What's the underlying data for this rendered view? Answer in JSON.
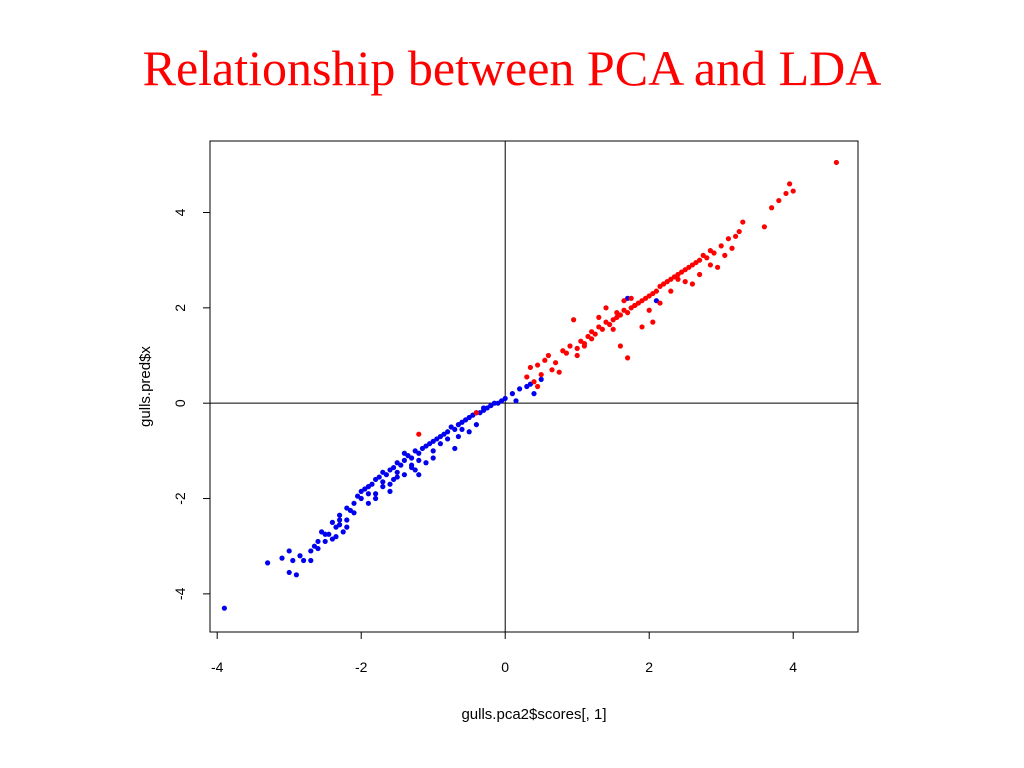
{
  "slide": {
    "title": "Relationship between PCA and LDA"
  },
  "colors": {
    "title": "#ff0000",
    "series_red": "#ff0000",
    "series_blue": "#0000ee",
    "axes": "#000000"
  },
  "chart_data": {
    "type": "scatter",
    "title": "",
    "xlabel": "gulls.pca2$scores[, 1]",
    "ylabel": "gulls.pred$x",
    "xlim": [
      -4.1,
      4.9
    ],
    "ylim": [
      -4.8,
      5.5
    ],
    "xticks": [
      -4,
      -2,
      0,
      2,
      4
    ],
    "yticks": [
      -4,
      -2,
      0,
      2,
      4
    ],
    "xtick_labels": [
      "-4",
      "-2",
      "0",
      "2",
      "4"
    ],
    "ytick_labels": [
      "-4",
      "-2",
      "0",
      "2",
      "4"
    ],
    "reference_lines": {
      "x": 0,
      "y": 0
    },
    "grid": false,
    "legend": false,
    "series": [
      {
        "color": "#0000ee",
        "x": [
          -3.9,
          -3.3,
          -3.1,
          -3.0,
          -2.95,
          -2.9,
          -2.85,
          -2.8,
          -2.7,
          -2.65,
          -2.6,
          -2.55,
          -2.5,
          -2.45,
          -2.4,
          -2.4,
          -2.35,
          -2.3,
          -2.3,
          -2.25,
          -2.2,
          -2.2,
          -2.15,
          -2.1,
          -2.05,
          -2.0,
          -1.95,
          -1.9,
          -1.9,
          -1.85,
          -1.8,
          -1.8,
          -1.75,
          -1.7,
          -1.7,
          -1.65,
          -1.6,
          -1.6,
          -1.55,
          -1.5,
          -1.5,
          -1.45,
          -1.4,
          -1.4,
          -1.35,
          -1.3,
          -1.3,
          -1.25,
          -1.2,
          -1.2,
          -1.15,
          -1.1,
          -1.05,
          -1.0,
          -0.95,
          -0.9,
          -0.85,
          -0.8,
          -0.75,
          -0.7,
          -0.65,
          -0.6,
          -0.55,
          -0.5,
          -0.45,
          -0.4,
          -0.35,
          -0.3,
          -0.25,
          -0.2,
          -0.15,
          -0.1,
          -0.05,
          0.0,
          0.1,
          0.2,
          0.3,
          0.4,
          0.5,
          1.7,
          2.1,
          -2.3,
          -2.0,
          -1.6,
          -1.3,
          -1.0,
          -0.7,
          -0.5,
          -2.5,
          -2.2,
          -1.8,
          -1.5,
          -1.1,
          -0.8,
          -0.3,
          -2.7,
          -1.9,
          -1.4,
          -0.6,
          0.15,
          0.35,
          -3.0,
          -2.6,
          -1.7,
          -1.2,
          -0.9,
          -0.4,
          -2.1,
          -1.0,
          -0.2,
          -1.55,
          -2.35,
          -0.65,
          -1.25
        ],
        "y": [
          -4.3,
          -3.35,
          -3.25,
          -3.55,
          -3.3,
          -3.6,
          -3.2,
          -3.3,
          -3.1,
          -3.0,
          -2.9,
          -2.7,
          -2.9,
          -2.75,
          -2.5,
          -2.85,
          -2.6,
          -2.55,
          -2.35,
          -2.7,
          -2.45,
          -2.2,
          -2.25,
          -2.1,
          -1.95,
          -1.85,
          -1.8,
          -1.75,
          -2.1,
          -1.7,
          -1.6,
          -1.9,
          -1.55,
          -1.65,
          -1.45,
          -1.5,
          -1.4,
          -1.7,
          -1.35,
          -1.45,
          -1.25,
          -1.3,
          -1.2,
          -1.5,
          -1.1,
          -1.15,
          -1.3,
          -1.0,
          -1.05,
          -1.5,
          -0.95,
          -0.9,
          -0.85,
          -0.8,
          -0.75,
          -0.7,
          -0.65,
          -0.6,
          -0.5,
          -0.55,
          -0.45,
          -0.4,
          -0.35,
          -0.3,
          -0.25,
          -0.2,
          -0.2,
          -0.15,
          -0.1,
          -0.05,
          0.0,
          0.0,
          0.05,
          0.1,
          0.2,
          0.3,
          0.35,
          0.2,
          0.5,
          2.2,
          2.15,
          -2.45,
          -2.0,
          -1.85,
          -1.35,
          -1.15,
          -0.95,
          -0.6,
          -2.75,
          -2.6,
          -2.0,
          -1.55,
          -1.25,
          -0.75,
          -0.1,
          -3.3,
          -1.9,
          -1.05,
          -0.55,
          0.05,
          0.4,
          -3.1,
          -3.05,
          -1.75,
          -1.2,
          -0.85,
          -0.45,
          -2.3,
          -1.0,
          -0.05,
          -1.6,
          -2.8,
          -0.7,
          -1.4
        ]
      },
      {
        "color": "#ff0000",
        "x": [
          -1.2,
          -0.4,
          0.3,
          0.35,
          0.4,
          0.45,
          0.5,
          0.55,
          0.6,
          0.7,
          0.8,
          0.9,
          1.0,
          1.05,
          1.1,
          1.15,
          1.2,
          1.25,
          1.3,
          1.35,
          1.4,
          1.45,
          1.5,
          1.55,
          1.6,
          1.65,
          1.7,
          1.75,
          1.8,
          1.85,
          1.9,
          1.95,
          2.0,
          2.05,
          2.1,
          2.15,
          2.2,
          2.25,
          2.3,
          2.35,
          2.4,
          2.45,
          2.5,
          2.55,
          2.6,
          2.65,
          2.7,
          2.75,
          2.8,
          2.85,
          2.9,
          3.0,
          3.1,
          3.2,
          3.25,
          3.3,
          3.6,
          3.7,
          3.9,
          3.95,
          4.0,
          4.6,
          1.7,
          1.6,
          0.95,
          1.4,
          1.9,
          2.3,
          2.6,
          2.95,
          1.2,
          1.8,
          2.4,
          0.45,
          0.75,
          1.0,
          1.5,
          2.0,
          2.7,
          3.15,
          3.8,
          1.3,
          1.75,
          2.15,
          2.5,
          1.65,
          0.65,
          2.85,
          2.05,
          3.05,
          0.85,
          1.1,
          1.55
        ],
        "y": [
          -0.65,
          -0.2,
          0.55,
          0.75,
          0.45,
          0.8,
          0.6,
          0.9,
          1.0,
          0.85,
          1.1,
          1.2,
          1.15,
          1.3,
          1.25,
          1.4,
          1.5,
          1.45,
          1.6,
          1.55,
          1.7,
          1.65,
          1.75,
          1.8,
          1.85,
          1.95,
          1.9,
          2.0,
          2.05,
          2.1,
          2.15,
          2.2,
          2.25,
          2.3,
          2.35,
          2.45,
          2.5,
          2.55,
          2.6,
          2.65,
          2.7,
          2.75,
          2.8,
          2.85,
          2.9,
          2.95,
          3.0,
          3.1,
          3.05,
          3.2,
          3.15,
          3.3,
          3.45,
          3.5,
          3.6,
          3.8,
          3.7,
          4.1,
          4.4,
          4.6,
          4.45,
          5.05,
          0.95,
          1.2,
          1.75,
          2.0,
          1.6,
          2.35,
          2.5,
          2.85,
          1.35,
          2.05,
          2.6,
          0.35,
          0.65,
          1.0,
          1.55,
          1.95,
          2.7,
          3.25,
          4.25,
          1.8,
          2.2,
          2.1,
          2.55,
          2.15,
          0.7,
          2.9,
          1.7,
          3.1,
          1.05,
          1.2,
          1.9
        ]
      }
    ]
  }
}
